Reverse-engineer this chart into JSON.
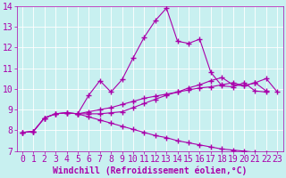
{
  "xlabel": "Windchill (Refroidissement éolien,°C)",
  "background_color": "#c8f0f0",
  "line_color": "#aa00aa",
  "grid_color": "#ffffff",
  "xlim": [
    -0.5,
    23.5
  ],
  "ylim": [
    7,
    14
  ],
  "yticks": [
    7,
    8,
    9,
    10,
    11,
    12,
    13,
    14
  ],
  "xticks": [
    0,
    1,
    2,
    3,
    4,
    5,
    6,
    7,
    8,
    9,
    10,
    11,
    12,
    13,
    14,
    15,
    16,
    17,
    18,
    19,
    20,
    21,
    22,
    23
  ],
  "line1_x": [
    0,
    1,
    2,
    3,
    4,
    5,
    6,
    7,
    8,
    9,
    10,
    11,
    12,
    13,
    14,
    15,
    16,
    17,
    18,
    19,
    20,
    21,
    22
  ],
  "line1_y": [
    7.9,
    7.95,
    8.6,
    8.8,
    8.85,
    8.8,
    9.7,
    10.4,
    9.85,
    10.45,
    11.5,
    12.5,
    13.3,
    13.9,
    12.3,
    12.2,
    12.4,
    10.8,
    10.15,
    10.1,
    10.3,
    9.9,
    9.85
  ],
  "line2_x": [
    0,
    1,
    2,
    3,
    4,
    5,
    6,
    7,
    8,
    9,
    10,
    11,
    12,
    13,
    14,
    15,
    16,
    17,
    18,
    19,
    20,
    21,
    22
  ],
  "line2_y": [
    7.9,
    7.95,
    8.6,
    8.8,
    8.85,
    8.8,
    8.8,
    8.8,
    8.85,
    8.9,
    9.1,
    9.3,
    9.5,
    9.7,
    9.85,
    10.05,
    10.2,
    10.4,
    10.55,
    10.2,
    10.15,
    10.3,
    9.9
  ],
  "line3_x": [
    0,
    1,
    2,
    3,
    4,
    5,
    6,
    7,
    8,
    9,
    10,
    11,
    12,
    13,
    14,
    15,
    16,
    17,
    18,
    19,
    20,
    21,
    22,
    23
  ],
  "line3_y": [
    7.9,
    7.95,
    8.6,
    8.8,
    8.85,
    8.8,
    8.65,
    8.5,
    8.35,
    8.2,
    8.05,
    7.9,
    7.75,
    7.65,
    7.5,
    7.4,
    7.3,
    7.2,
    7.1,
    7.05,
    7.0,
    6.95,
    6.9,
    6.85
  ],
  "line4_x": [
    5,
    6,
    7,
    8,
    9,
    10,
    11,
    12,
    13,
    14,
    15,
    16,
    17,
    18,
    19,
    20,
    21,
    22,
    23
  ],
  "line4_y": [
    8.8,
    8.9,
    9.0,
    9.1,
    9.25,
    9.4,
    9.55,
    9.65,
    9.75,
    9.85,
    9.95,
    10.05,
    10.1,
    10.2,
    10.3,
    10.15,
    10.3,
    10.5,
    9.85
  ],
  "font_size": 7,
  "xlabel_fontsize": 7
}
